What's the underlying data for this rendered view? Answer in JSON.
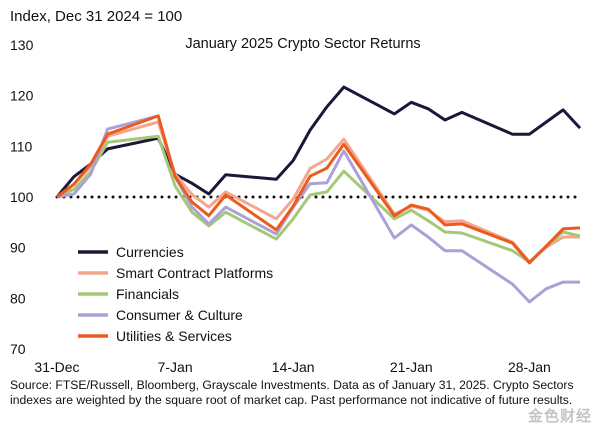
{
  "chart_data": {
    "type": "line",
    "title": "January 2025 Crypto Sector Returns",
    "ylabel": "Index, Dec 31 2024 = 100",
    "xlabel": "",
    "ylim": [
      70,
      130
    ],
    "yticks": [
      70,
      80,
      90,
      100,
      110,
      120,
      130
    ],
    "xlim": [
      "2024-12-31",
      "2025-01-31"
    ],
    "xticks": [
      {
        "date": "2024-12-31",
        "label": "31-Dec"
      },
      {
        "date": "2025-01-07",
        "label": "7-Jan"
      },
      {
        "date": "2025-01-14",
        "label": "14-Jan"
      },
      {
        "date": "2025-01-21",
        "label": "21-Jan"
      },
      {
        "date": "2025-01-28",
        "label": "28-Jan"
      }
    ],
    "reference_line": {
      "value": 100,
      "style": "dotted"
    },
    "grid": false,
    "legend_placement": "lower-left",
    "x": [
      "2024-12-31",
      "2025-01-01",
      "2025-01-02",
      "2025-01-03",
      "2025-01-06",
      "2025-01-07",
      "2025-01-08",
      "2025-01-09",
      "2025-01-10",
      "2025-01-13",
      "2025-01-14",
      "2025-01-15",
      "2025-01-16",
      "2025-01-17",
      "2025-01-20",
      "2025-01-21",
      "2025-01-22",
      "2025-01-23",
      "2025-01-24",
      "2025-01-27",
      "2025-01-28",
      "2025-01-29",
      "2025-01-30",
      "2025-01-31"
    ],
    "series": [
      {
        "name": "Currencies",
        "color": "#1b1738",
        "values": [
          100,
          104,
          106.5,
          109.5,
          111.6,
          104.5,
          102.7,
          100.6,
          104.4,
          103.5,
          107.2,
          113.2,
          117.8,
          121.7,
          116.4,
          118.7,
          117.4,
          115.2,
          116.7,
          112.4,
          112.4,
          114.8,
          117.2,
          113.6
        ]
      },
      {
        "name": "Smart Contract Platforms",
        "color": "#f4a78e",
        "values": [
          100,
          102.5,
          106,
          112,
          114.8,
          104.5,
          100.5,
          98,
          101,
          95.7,
          99.6,
          105.6,
          107.5,
          111.4,
          96.6,
          98.2,
          97.4,
          95.1,
          95.3,
          91.1,
          87.2,
          90.1,
          92.1,
          92.1
        ]
      },
      {
        "name": "Financials",
        "color": "#a5c878",
        "values": [
          100,
          101.5,
          105,
          110.8,
          112,
          102.2,
          97,
          94.3,
          97,
          91.7,
          95.7,
          100.4,
          101,
          105.1,
          95.7,
          97.4,
          95.3,
          93.1,
          92.9,
          89.4,
          87.2,
          90.3,
          93.1,
          92.3
        ]
      },
      {
        "name": "Consumer & Culture",
        "color": "#aaa2d6",
        "values": [
          100,
          100.6,
          104.5,
          113.4,
          116,
          104,
          98,
          94.7,
          98,
          92.7,
          98,
          102.6,
          102.8,
          109.1,
          91.9,
          94.5,
          92.1,
          89.4,
          89.4,
          82.8,
          79.3,
          81.9,
          83.2,
          83.2
        ]
      },
      {
        "name": "Utilities & Services",
        "color": "#ec5a1e",
        "values": [
          100,
          102.5,
          106.5,
          112.4,
          116,
          104,
          99,
          96.3,
          100.4,
          93.5,
          98.2,
          104.1,
          105.7,
          110.4,
          96.3,
          98.4,
          97.6,
          94.5,
          94.7,
          90.9,
          87,
          90.3,
          93.7,
          93.9
        ]
      }
    ]
  },
  "source": "Source: FTSE/Russell, Bloomberg, Grayscale Investments. Data as of January 31, 2025. Crypto Sectors indexes are weighted by the square root of market cap. Past performance not indicative of future results.",
  "watermark": "金色财经"
}
